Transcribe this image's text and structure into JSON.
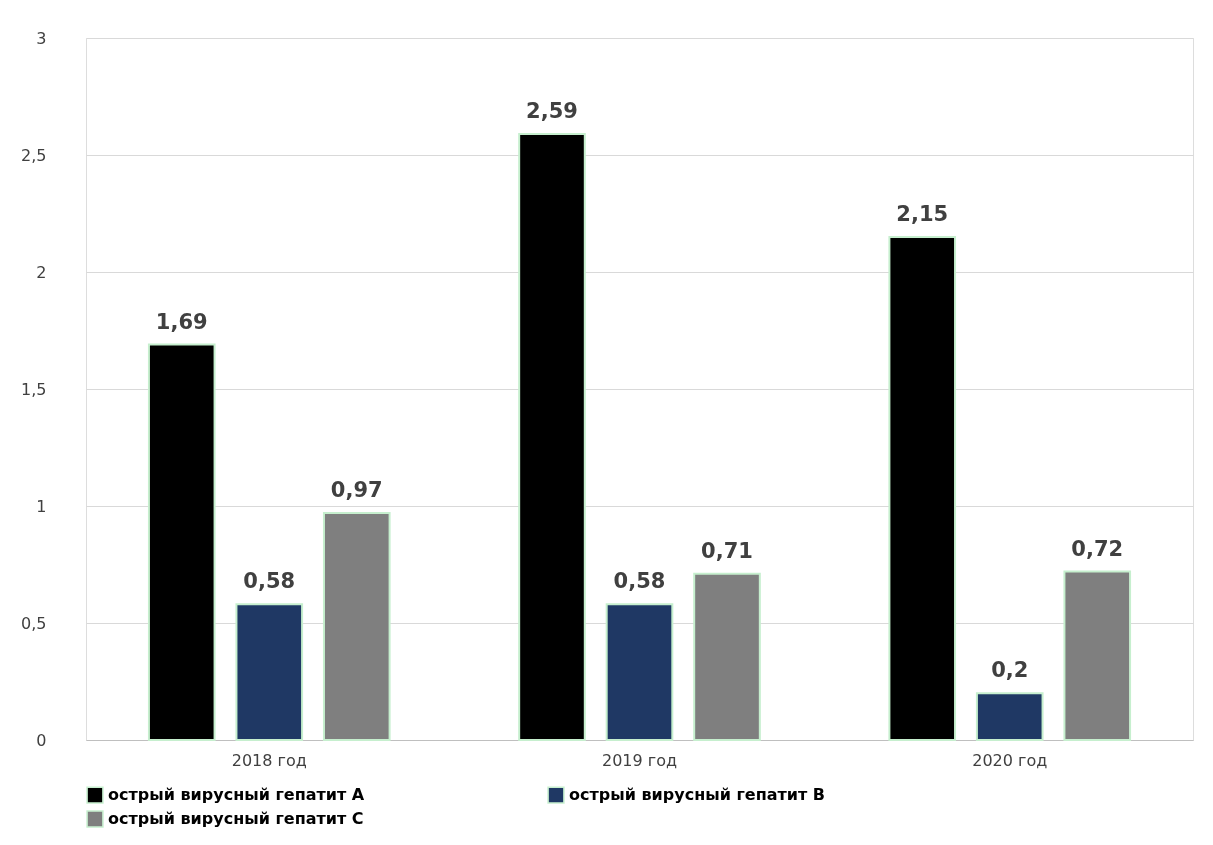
{
  "chart_data": {
    "type": "bar",
    "categories": [
      "2018 год",
      "2019 год",
      "2020 год"
    ],
    "series": [
      {
        "name": "острый вирусный гепатит A",
        "color": "#000000",
        "values": [
          1.69,
          2.59,
          2.15
        ],
        "value_labels": [
          "1,69",
          "2,59",
          "2,15"
        ]
      },
      {
        "name": "острый вирусный гепатит B",
        "color": "#1f3864",
        "values": [
          0.58,
          0.58,
          0.2
        ],
        "value_labels": [
          "0,58",
          "0,58",
          "0,2"
        ]
      },
      {
        "name": "острый вирусный гепатит C",
        "color": "#7f7f7f",
        "values": [
          0.97,
          0.71,
          0.72
        ],
        "value_labels": [
          "0,97",
          "0,71",
          "0,72"
        ]
      }
    ],
    "ylim": [
      0,
      3
    ],
    "yticks": [
      0,
      {
        "value": 0.5,
        "label": "0,5"
      },
      1,
      {
        "value": 1.5,
        "label": "1,5"
      },
      2,
      {
        "value": 2.5,
        "label": "2,5"
      },
      3
    ],
    "grid": "y",
    "legend": "bottom"
  }
}
